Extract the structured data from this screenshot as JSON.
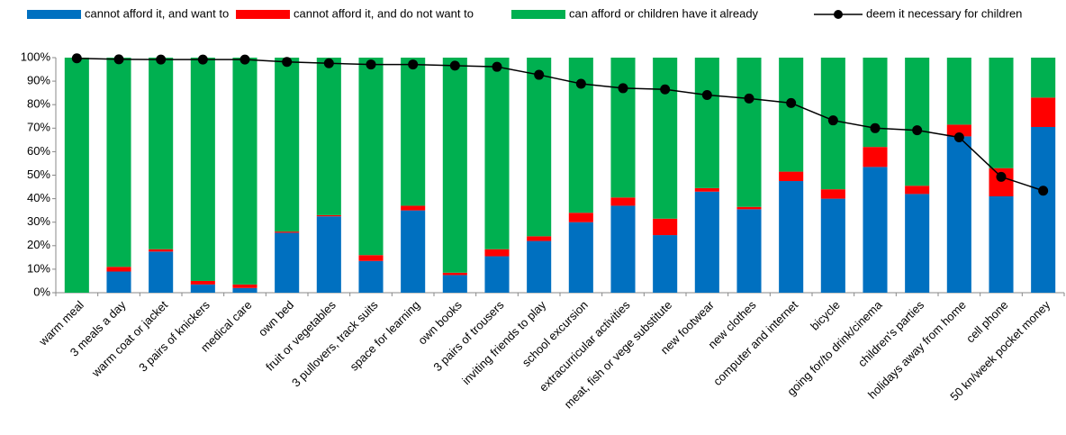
{
  "chart_data": {
    "type": "bar",
    "stacked": true,
    "categories": [
      "warm meal",
      "3 meals a day",
      "warm coat or jacket",
      "3 pairs of knickers",
      "medical care",
      "own bed",
      "fruit or vegetables",
      "3 pullovers, track suits",
      "space for learning",
      "own books",
      "3 pairs of trousers",
      "inviting friends to play",
      "school excursion",
      "extracurricular activities",
      "meat, fish or vege substitute",
      "new footwear",
      "new clothes",
      "computer and internet",
      "bicycle",
      "going for/to drink/cinema",
      "children's parties",
      "holidays away from home",
      "cell phone",
      "50 kn/week pocket money"
    ],
    "series": [
      {
        "name": "cannot afford it, and want to",
        "color": "#0070c0",
        "values": [
          0,
          9,
          17.5,
          3.5,
          2,
          25.5,
          32.5,
          13.5,
          35,
          7.5,
          15.5,
          22,
          30,
          37,
          24.5,
          43,
          35.5,
          47.5,
          40,
          53.5,
          42,
          66.5,
          41,
          70.5
        ]
      },
      {
        "name": "cannot afford it, and do not want to",
        "color": "#ff0000",
        "values": [
          0,
          2,
          1,
          1.5,
          1.5,
          0.5,
          0.5,
          2.5,
          2,
          1,
          3,
          2,
          4,
          3.5,
          7,
          1.5,
          1,
          4,
          4,
          8.5,
          3.5,
          5,
          12,
          12.5
        ]
      },
      {
        "name": "can afford or children have it already",
        "color": "#00b050",
        "values": [
          100,
          89,
          81.5,
          95,
          96.5,
          74,
          67,
          84,
          63,
          91.5,
          81.5,
          76,
          66,
          59.5,
          68.5,
          55.5,
          63.5,
          48.5,
          56,
          38,
          54.5,
          28.5,
          47,
          17
        ]
      },
      {
        "name": "deem it necessary for children",
        "color": "#000000",
        "type": "line",
        "values": [
          99.7,
          99.3,
          99.2,
          99.2,
          99.2,
          98.2,
          97.6,
          97.1,
          97.1,
          96.6,
          96.1,
          92.7,
          88.9,
          87,
          86.5,
          84.1,
          82.6,
          80.7,
          73.3,
          70,
          69.1,
          66.1,
          49.3,
          43.4
        ]
      }
    ],
    "ylim": [
      0,
      100
    ],
    "yticks": [
      {
        "value": 0,
        "label": "0%"
      },
      {
        "value": 10,
        "label": "10%"
      },
      {
        "value": 20,
        "label": "20%"
      },
      {
        "value": 30,
        "label": "30%"
      },
      {
        "value": 40,
        "label": "40%"
      },
      {
        "value": 50,
        "label": "50%"
      },
      {
        "value": 60,
        "label": "60%"
      },
      {
        "value": 70,
        "label": "70%"
      },
      {
        "value": 80,
        "label": "80%"
      },
      {
        "value": 90,
        "label": "90%"
      },
      {
        "value": 100,
        "label": "100%"
      }
    ],
    "grid": false,
    "legend": "top"
  }
}
